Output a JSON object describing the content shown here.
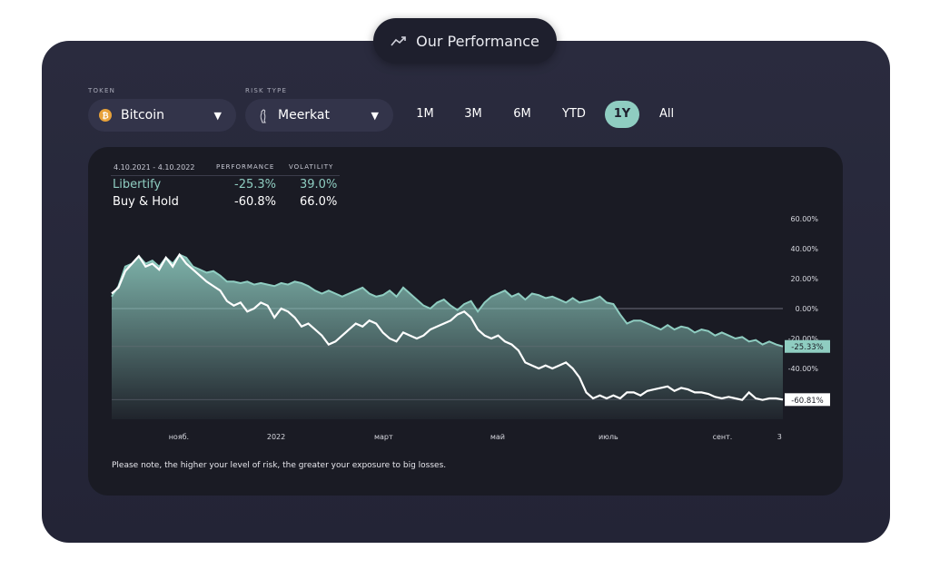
{
  "header": {
    "title": "Our Performance",
    "icon": "trending-up-icon"
  },
  "filters": {
    "token_label": "TOKEN",
    "token_value": "Bitcoin",
    "risk_label": "RISK TYPE",
    "risk_value": "Meerkat",
    "periods": [
      "1M",
      "3M",
      "6M",
      "YTD",
      "1Y",
      "All"
    ],
    "active_period": "1Y",
    "accent": "#8fcdc1"
  },
  "stats": {
    "date_range": "4.10.2021 - 4.10.2022",
    "col_performance": "PERFORMANCE",
    "col_volatility": "VOLATILITY",
    "rows": [
      {
        "name": "Libertify",
        "performance": "-25.3%",
        "volatility": "39.0%"
      },
      {
        "name": "Buy & Hold",
        "performance": "-60.8%",
        "volatility": "66.0%"
      }
    ]
  },
  "note": "Please note, the higher your level of risk, the greater your exposure to big losses.",
  "chart_data": {
    "type": "area",
    "y_axis_ticks": [
      "60.00%",
      "40.00%",
      "20.00%",
      "0.00%",
      "-20.00%",
      "-40.00%"
    ],
    "y_tick_values": [
      60,
      40,
      20,
      0,
      -20,
      -40
    ],
    "ylim": [
      -75,
      65
    ],
    "x_axis_ticks": [
      "нояб.",
      "2022",
      "март",
      "май",
      "июль",
      "сент.",
      "3"
    ],
    "x_tick_positions": [
      0.1,
      0.245,
      0.405,
      0.575,
      0.74,
      0.91,
      0.995
    ],
    "series": [
      {
        "name": "Libertify",
        "color": "#8fcdc1",
        "end_label": "-25.33%",
        "values": [
          8,
          15,
          28,
          30,
          35,
          30,
          32,
          28,
          34,
          30,
          36,
          34,
          28,
          26,
          24,
          25,
          22,
          18,
          18,
          17,
          18,
          16,
          17,
          16,
          15,
          17,
          16,
          18,
          17,
          15,
          12,
          10,
          12,
          10,
          8,
          10,
          12,
          14,
          10,
          8,
          9,
          12,
          8,
          14,
          10,
          6,
          2,
          0,
          4,
          6,
          2,
          -1,
          3,
          5,
          -2,
          4,
          8,
          10,
          12,
          8,
          10,
          6,
          10,
          9,
          7,
          8,
          6,
          4,
          7,
          4,
          5,
          6,
          8,
          4,
          3,
          -4,
          -10,
          -8,
          -8,
          -10,
          -12,
          -14,
          -11,
          -14,
          -12,
          -13,
          -16,
          -14,
          -15,
          -18,
          -16,
          -18,
          -20,
          -19,
          -22,
          -21,
          -24,
          -22,
          -24,
          -25.3
        ]
      },
      {
        "name": "Buy & Hold",
        "color": "#ffffff",
        "end_label": "-60.81%",
        "values": [
          10,
          14,
          25,
          30,
          35,
          28,
          30,
          26,
          34,
          28,
          36,
          30,
          26,
          22,
          18,
          15,
          12,
          5,
          2,
          4,
          -2,
          0,
          4,
          2,
          -6,
          0,
          -2,
          -6,
          -12,
          -10,
          -14,
          -18,
          -24,
          -22,
          -18,
          -14,
          -10,
          -12,
          -8,
          -10,
          -16,
          -20,
          -22,
          -16,
          -18,
          -20,
          -18,
          -14,
          -12,
          -10,
          -8,
          -4,
          -2,
          -6,
          -14,
          -18,
          -20,
          -18,
          -22,
          -24,
          -28,
          -36,
          -38,
          -40,
          -38,
          -40,
          -38,
          -36,
          -40,
          -46,
          -56,
          -60,
          -58,
          -60,
          -58,
          -60,
          -56,
          -56,
          -58,
          -55,
          -54,
          -53,
          -52,
          -55,
          -53,
          -54,
          -56,
          -56,
          -57,
          -59,
          -60,
          -59,
          -60,
          -61,
          -56,
          -60,
          -61,
          -60,
          -60,
          -60.8
        ]
      }
    ]
  }
}
